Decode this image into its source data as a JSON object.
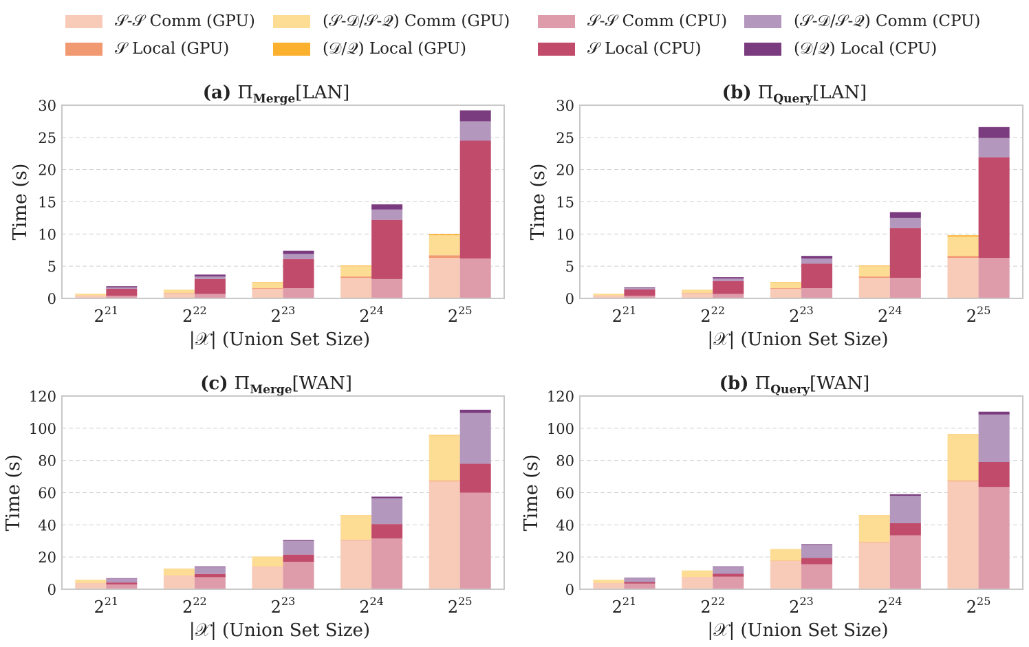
{
  "legend": [
    {
      "label": "𝒮-𝒮 Comm (GPU)",
      "color": "#f8cbb8"
    },
    {
      "label": "𝒮 Local (GPU)",
      "color": "#f19a72"
    },
    {
      "label": "(𝒮-𝒟/𝒮-𝒬) Comm (GPU)",
      "color": "#fddc94"
    },
    {
      "label": "(𝒟/𝒬) Local (GPU)",
      "color": "#fbb02e"
    },
    {
      "label": "𝒮-𝒮 Comm (CPU)",
      "color": "#de9cab"
    },
    {
      "label": "𝒮 Local (CPU)",
      "color": "#c14b6b"
    },
    {
      "label": "(𝒮-𝒟/𝒮-𝒬) Comm (CPU)",
      "color": "#b397bd"
    },
    {
      "label": "(𝒟/𝒬) Local (CPU)",
      "color": "#7b3c7f"
    }
  ],
  "chart_data": [
    {
      "type": "bar",
      "title": "(a) Π_Merge[LAN]",
      "title_parts": {
        "prefix": "(a)",
        "pi": "Π",
        "sub": "Merge",
        "suffix": "[LAN]"
      },
      "ylabel": "Time (s)",
      "xlabel": "|𝒳| (Union Set Size)",
      "categories": [
        "2^21",
        "2^22",
        "2^23",
        "2^24",
        "2^25"
      ],
      "tick_labels": [
        {
          "base": "2",
          "exp": "21"
        },
        {
          "base": "2",
          "exp": "22"
        },
        {
          "base": "2",
          "exp": "23"
        },
        {
          "base": "2",
          "exp": "24"
        },
        {
          "base": "2",
          "exp": "25"
        }
      ],
      "ylim": [
        0,
        30
      ],
      "yticks": [
        0,
        5,
        10,
        15,
        20,
        25,
        30
      ],
      "grid": true,
      "gpu": {
        "ss_comm": [
          0.4,
          0.8,
          1.5,
          3.2,
          6.3
        ],
        "s_local": [
          0.05,
          0.05,
          0.1,
          0.2,
          0.4
        ],
        "sdq_comm": [
          0.25,
          0.45,
          0.9,
          1.6,
          3.1
        ],
        "dq_local": [
          0.02,
          0.03,
          0.05,
          0.1,
          0.2
        ]
      },
      "cpu": {
        "ss_comm": [
          0.4,
          0.7,
          1.6,
          3.0,
          6.2
        ],
        "s_local": [
          1.1,
          2.3,
          4.5,
          9.2,
          18.3
        ],
        "sdq_comm": [
          0.2,
          0.4,
          0.8,
          1.6,
          3.0
        ],
        "dq_local": [
          0.2,
          0.3,
          0.5,
          0.8,
          1.7
        ]
      }
    },
    {
      "type": "bar",
      "title": "(b) Π_Query[LAN]",
      "title_parts": {
        "prefix": "(b)",
        "pi": "Π",
        "sub": "Query",
        "suffix": "[LAN]"
      },
      "ylabel": "Time (s)",
      "xlabel": "|𝒳| (Union Set Size)",
      "categories": [
        "2^21",
        "2^22",
        "2^23",
        "2^24",
        "2^25"
      ],
      "tick_labels": [
        {
          "base": "2",
          "exp": "21"
        },
        {
          "base": "2",
          "exp": "22"
        },
        {
          "base": "2",
          "exp": "23"
        },
        {
          "base": "2",
          "exp": "24"
        },
        {
          "base": "2",
          "exp": "25"
        }
      ],
      "ylim": [
        0,
        30
      ],
      "yticks": [
        0,
        5,
        10,
        15,
        20,
        25,
        30
      ],
      "grid": true,
      "gpu": {
        "ss_comm": [
          0.4,
          0.8,
          1.5,
          3.2,
          6.3
        ],
        "s_local": [
          0.05,
          0.05,
          0.1,
          0.2,
          0.3
        ],
        "sdq_comm": [
          0.25,
          0.45,
          0.9,
          1.6,
          3.0
        ],
        "dq_local": [
          0.02,
          0.03,
          0.05,
          0.1,
          0.2
        ]
      },
      "cpu": {
        "ss_comm": [
          0.4,
          0.7,
          1.6,
          3.2,
          6.3
        ],
        "s_local": [
          1.0,
          2.0,
          3.8,
          7.7,
          15.6
        ],
        "sdq_comm": [
          0.2,
          0.4,
          0.8,
          1.6,
          3.0
        ],
        "dq_local": [
          0.1,
          0.2,
          0.4,
          0.9,
          1.7
        ]
      }
    },
    {
      "type": "bar",
      "title": "(c) Π_Merge[WAN]",
      "title_parts": {
        "prefix": "(c)",
        "pi": "Π",
        "sub": "Merge",
        "suffix": "[WAN]"
      },
      "ylabel": "Time (s)",
      "xlabel": "|𝒳| (Union Set Size)",
      "categories": [
        "2^21",
        "2^22",
        "2^23",
        "2^24",
        "2^25"
      ],
      "tick_labels": [
        {
          "base": "2",
          "exp": "21"
        },
        {
          "base": "2",
          "exp": "22"
        },
        {
          "base": "2",
          "exp": "23"
        },
        {
          "base": "2",
          "exp": "24"
        },
        {
          "base": "2",
          "exp": "25"
        }
      ],
      "ylim": [
        0,
        120
      ],
      "yticks": [
        0,
        20,
        40,
        60,
        80,
        100,
        120
      ],
      "grid": true,
      "gpu": {
        "ss_comm": [
          3.8,
          8.5,
          14.0,
          30.5,
          67.0
        ],
        "s_local": [
          0.05,
          0.1,
          0.2,
          0.3,
          0.5
        ],
        "sdq_comm": [
          2.0,
          4.2,
          6.0,
          15.0,
          28.0
        ],
        "dq_local": [
          0.02,
          0.05,
          0.1,
          0.2,
          0.3
        ]
      },
      "cpu": {
        "ss_comm": [
          3.0,
          7.5,
          17.0,
          31.5,
          60.0
        ],
        "s_local": [
          1.2,
          2.0,
          4.5,
          9.0,
          18.0
        ],
        "sdq_comm": [
          2.5,
          4.3,
          8.5,
          16.0,
          31.5
        ],
        "dq_local": [
          0.2,
          0.4,
          0.6,
          1.0,
          2.0
        ]
      }
    },
    {
      "type": "bar",
      "title": "(b) Π_Query[WAN]",
      "title_parts": {
        "prefix": "(b)",
        "pi": "Π",
        "sub": "Query",
        "suffix": "[WAN]"
      },
      "ylabel": "Time (s)",
      "xlabel": "|𝒳| (Union Set Size)",
      "categories": [
        "2^21",
        "2^22",
        "2^23",
        "2^24",
        "2^25"
      ],
      "tick_labels": [
        {
          "base": "2",
          "exp": "21"
        },
        {
          "base": "2",
          "exp": "22"
        },
        {
          "base": "2",
          "exp": "23"
        },
        {
          "base": "2",
          "exp": "24"
        },
        {
          "base": "2",
          "exp": "25"
        }
      ],
      "ylim": [
        0,
        120
      ],
      "yticks": [
        0,
        20,
        40,
        60,
        80,
        100,
        120
      ],
      "grid": true,
      "gpu": {
        "ss_comm": [
          3.8,
          7.5,
          17.5,
          29.0,
          67.0
        ],
        "s_local": [
          0.05,
          0.1,
          0.2,
          0.3,
          0.5
        ],
        "sdq_comm": [
          2.0,
          4.0,
          7.2,
          16.5,
          28.5
        ],
        "dq_local": [
          0.02,
          0.05,
          0.1,
          0.2,
          0.3
        ]
      },
      "cpu": {
        "ss_comm": [
          3.5,
          7.8,
          15.5,
          33.5,
          63.5
        ],
        "s_local": [
          1.0,
          1.8,
          4.0,
          7.5,
          15.5
        ],
        "sdq_comm": [
          2.5,
          4.3,
          8.0,
          17.0,
          29.5
        ],
        "dq_local": [
          0.2,
          0.3,
          0.5,
          1.0,
          1.8
        ]
      }
    }
  ]
}
